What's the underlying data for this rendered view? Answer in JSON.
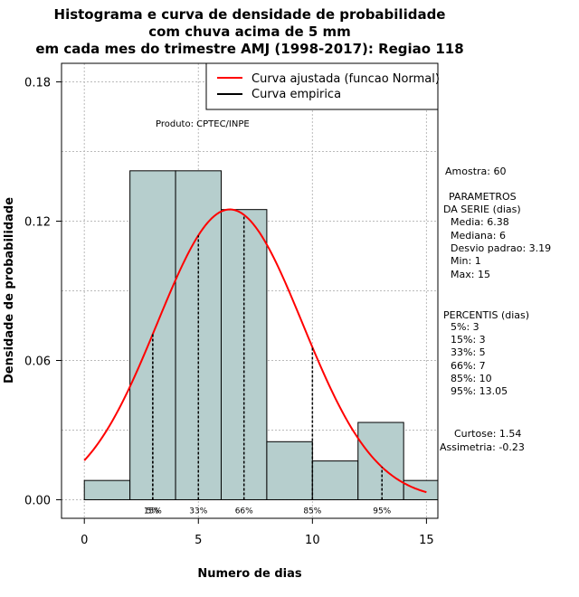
{
  "chart_data": {
    "type": "bar",
    "title": [
      "Histograma e curva de densidade de probabilidade",
      "com chuva acima de 5 mm",
      "em cada mes do trimestre AMJ (1998-2017): Regiao 118"
    ],
    "xlabel": "Numero de dias",
    "ylabel": "Densidade de probabilidade",
    "xlim": [
      -1,
      15.5
    ],
    "ylim": [
      -0.008,
      0.188
    ],
    "x_ticks": [
      0,
      5,
      10,
      15
    ],
    "y_ticks": [
      0.0,
      0.06,
      0.12,
      0.18
    ],
    "x_tick_labels": [
      "0",
      "5",
      "10",
      "15"
    ],
    "y_tick_labels": [
      "0.00",
      "0.06",
      "0.12",
      "0.18"
    ],
    "grid": true,
    "bins": [
      {
        "x0": 0,
        "x1": 2,
        "density": 0.0083
      },
      {
        "x0": 2,
        "x1": 4,
        "density": 0.1417
      },
      {
        "x0": 4,
        "x1": 6,
        "density": 0.1417
      },
      {
        "x0": 6,
        "x1": 8,
        "density": 0.125
      },
      {
        "x0": 8,
        "x1": 10,
        "density": 0.025
      },
      {
        "x0": 10,
        "x1": 12,
        "density": 0.0167
      },
      {
        "x0": 12,
        "x1": 14,
        "density": 0.0333
      },
      {
        "x0": 14,
        "x1": 16,
        "density": 0.0083
      }
    ],
    "bar_color": "#b6cecd",
    "normal_fit": {
      "mean": 6.38,
      "sd": 3.19,
      "x_from": 0,
      "x_to": 15,
      "color": "#ff0000"
    },
    "percentile_lines": [
      {
        "label": "5%",
        "x": 3
      },
      {
        "label": "15%",
        "x": 3
      },
      {
        "label": "33%",
        "x": 5
      },
      {
        "label": "66%",
        "x": 7
      },
      {
        "label": "85%",
        "x": 10
      },
      {
        "label": "95%",
        "x": 13.05
      }
    ],
    "legend": {
      "placement": "top-right",
      "entries": [
        {
          "label": "Curva ajustada (funcao Normal)",
          "color": "#ff0000"
        },
        {
          "label": "Curva empirica",
          "color": "#000000"
        }
      ]
    },
    "annotations": {
      "product": "Produto: CPTEC/INPE",
      "sample": "Amostra: 60",
      "params_title": [
        "PARAMETROS",
        "DA SERIE (dias)"
      ],
      "params": [
        "Media: 6.38",
        "Mediana: 6",
        "Desvio padrao: 3.19",
        "Min: 1",
        "Max: 15"
      ],
      "percentiles_title": "PERCENTIS (dias)",
      "percentiles": [
        "5%: 3",
        "15%: 3",
        "33%: 5",
        "66%: 7",
        "85%: 10",
        "95%: 13.05"
      ],
      "shape": [
        "Curtose: 1.54",
        "Assimetria: -0.23"
      ]
    }
  }
}
